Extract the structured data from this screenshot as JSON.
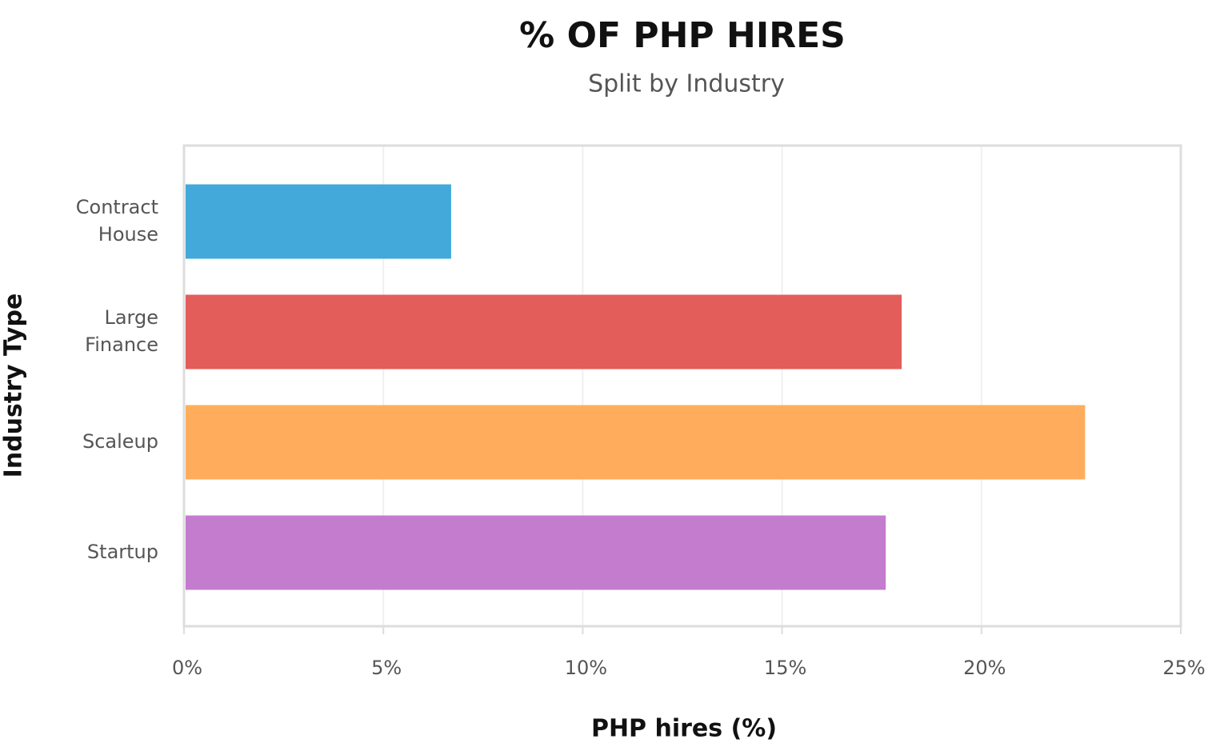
{
  "chart_data": {
    "type": "bar",
    "orientation": "horizontal",
    "title": "% OF PHP HIRES",
    "subtitle": "Split by Industry",
    "x_label": "PHP hires (%)",
    "y_label": "Industry Type",
    "categories": [
      "Contract House",
      "Large Finance",
      "Scaleup",
      "Startup"
    ],
    "values": [
      6.7,
      18.0,
      22.6,
      17.6
    ],
    "colors": [
      "#42a9da",
      "#e35d5a",
      "#ffad5c",
      "#c47cce"
    ],
    "xlim": [
      0,
      25
    ],
    "xticks": [
      {
        "value": 0,
        "label": "0%"
      },
      {
        "value": 5,
        "label": "5%"
      },
      {
        "value": 10,
        "label": "10%"
      },
      {
        "value": 15,
        "label": "15%"
      },
      {
        "value": 20,
        "label": "20%"
      },
      {
        "value": 25,
        "label": "25%"
      }
    ],
    "grid": true
  }
}
